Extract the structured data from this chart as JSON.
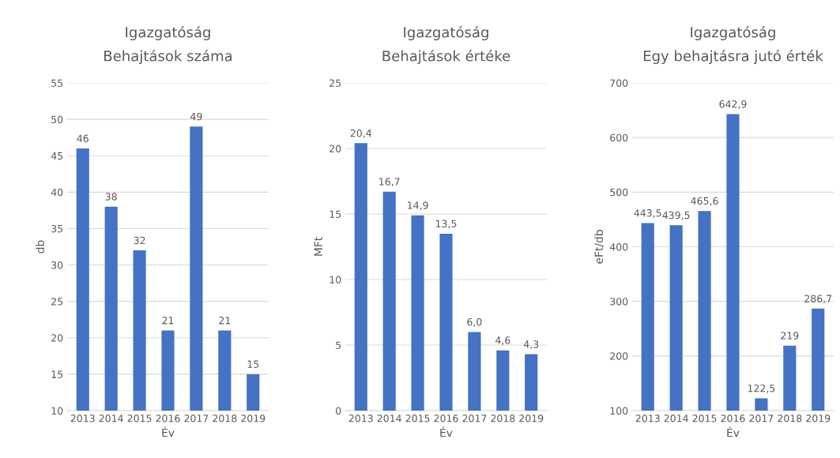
{
  "chart_data": [
    {
      "type": "bar",
      "title": "Igazgatóság",
      "subtitle": "Behajtások száma",
      "xlabel": "Év",
      "ylabel": "db",
      "categories": [
        "2013",
        "2014",
        "2015",
        "2016",
        "2017",
        "2018",
        "2019"
      ],
      "values": [
        46,
        38,
        32,
        21,
        49,
        21,
        15
      ],
      "value_labels": [
        "46",
        "38",
        "32",
        "21",
        "49",
        "21",
        "15"
      ],
      "color": "#4472c4",
      "ylim": [
        10,
        55
      ],
      "yticks": [
        10,
        15,
        20,
        25,
        30,
        35,
        40,
        45,
        50,
        55
      ],
      "grid": "y"
    },
    {
      "type": "bar",
      "title": "Igazgatóság",
      "subtitle": "Behajtások értéke",
      "xlabel": "Év",
      "ylabel": "MFt",
      "categories": [
        "2013",
        "2014",
        "2015",
        "2016",
        "2017",
        "2018",
        "2019"
      ],
      "values": [
        20.4,
        16.7,
        14.9,
        13.5,
        6.0,
        4.6,
        4.3
      ],
      "value_labels": [
        "20,4",
        "16,7",
        "14,9",
        "13,5",
        "6,0",
        "4,6",
        "4,3"
      ],
      "color": "#4472c4",
      "ylim": [
        0,
        25
      ],
      "yticks": [
        0,
        5,
        10,
        15,
        20,
        25
      ],
      "grid": "y"
    },
    {
      "type": "bar",
      "title": "Igazgatóság",
      "subtitle": "Egy behajtásra jutó érték",
      "xlabel": "Év",
      "ylabel": "eFt/db",
      "categories": [
        "2013",
        "2014",
        "2015",
        "2016",
        "2017",
        "2018",
        "2019"
      ],
      "values": [
        443.5,
        439.5,
        465.6,
        642.9,
        122.5,
        219,
        286.7
      ],
      "value_labels": [
        "443,5",
        "439,5",
        "465,6",
        "642,9",
        "122,5",
        "219",
        "286,7"
      ],
      "color": "#4472c4",
      "ylim": [
        100,
        700
      ],
      "yticks": [
        100,
        200,
        300,
        400,
        500,
        600,
        700
      ],
      "grid": "y"
    }
  ]
}
